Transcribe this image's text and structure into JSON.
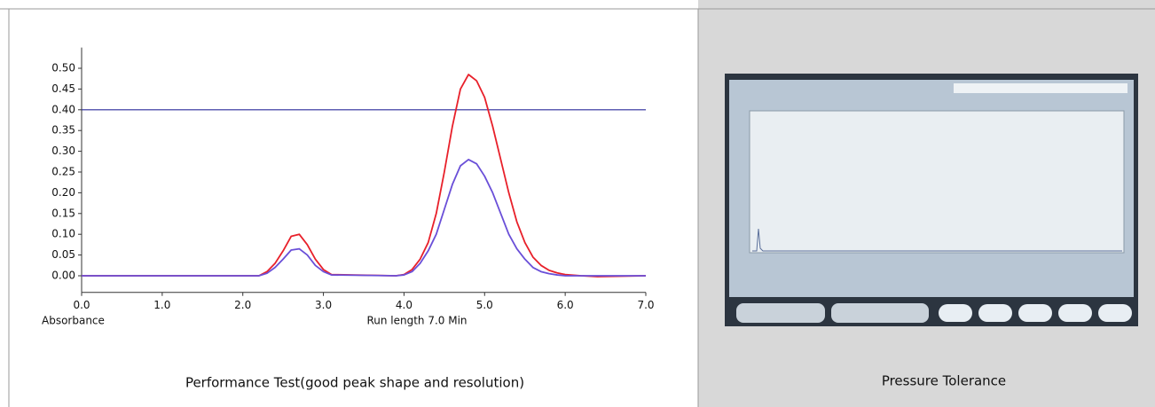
{
  "chart_data": {
    "type": "line",
    "title": "Performance Test(good peak shape and resolution)",
    "xlabel": "Run length 7.0 Min",
    "ylabel": "Absorbance",
    "x": [
      0,
      2.2,
      2.3,
      2.4,
      2.5,
      2.6,
      2.7,
      2.8,
      2.9,
      3.0,
      3.1,
      3.9,
      4.0,
      4.1,
      4.2,
      4.3,
      4.4,
      4.5,
      4.6,
      4.7,
      4.8,
      4.9,
      5.0,
      5.1,
      5.2,
      5.3,
      5.4,
      5.5,
      5.6,
      5.7,
      5.8,
      5.9,
      6.0,
      6.2,
      6.4,
      7.0
    ],
    "series": [
      {
        "color": "#e8202a",
        "values": [
          0,
          0,
          0.01,
          0.03,
          0.06,
          0.095,
          0.1,
          0.075,
          0.04,
          0.015,
          0.003,
          0,
          0.003,
          0.015,
          0.04,
          0.08,
          0.15,
          0.25,
          0.36,
          0.45,
          0.485,
          0.47,
          0.43,
          0.36,
          0.28,
          0.2,
          0.13,
          0.08,
          0.045,
          0.025,
          0.013,
          0.007,
          0.003,
          0,
          -0.002,
          0
        ]
      },
      {
        "color": "#6a4fd8",
        "values": [
          0,
          0,
          0.006,
          0.02,
          0.04,
          0.062,
          0.065,
          0.05,
          0.025,
          0.01,
          0.002,
          0,
          0.002,
          0.01,
          0.03,
          0.06,
          0.1,
          0.16,
          0.22,
          0.265,
          0.28,
          0.27,
          0.24,
          0.2,
          0.15,
          0.1,
          0.065,
          0.04,
          0.02,
          0.01,
          0.005,
          0.002,
          0,
          0,
          0,
          0
        ]
      }
    ],
    "reference_line": {
      "value": 0.4,
      "color": "#2a2a9a"
    },
    "xlim": [
      0,
      7
    ],
    "xticks": [
      {
        "value": 0,
        "label": "0.0"
      },
      {
        "value": 1,
        "label": "1.0"
      },
      {
        "value": 2,
        "label": "2.0"
      },
      {
        "value": 3,
        "label": "3.0"
      },
      {
        "value": 4,
        "label": "4.0"
      },
      {
        "value": 5,
        "label": "5.0"
      },
      {
        "value": 6,
        "label": "6.0"
      },
      {
        "value": 7,
        "label": "7.0"
      }
    ],
    "ylim": [
      -0.04,
      0.55
    ],
    "yticks": [
      {
        "value": 0,
        "label": "0.00"
      },
      {
        "value": 0.05,
        "label": "0.05"
      },
      {
        "value": 0.1,
        "label": "0.10"
      },
      {
        "value": 0.15,
        "label": "0.15"
      },
      {
        "value": 0.2,
        "label": "0.20"
      },
      {
        "value": 0.25,
        "label": "0.25"
      },
      {
        "value": 0.3,
        "label": "0.30"
      },
      {
        "value": 0.35,
        "label": "0.35"
      },
      {
        "value": 0.4,
        "label": "0.40"
      },
      {
        "value": 0.45,
        "label": "0.45"
      },
      {
        "value": 0.5,
        "label": "0.50"
      }
    ],
    "grid": false
  },
  "photo_caption": "Pressure Tolerance"
}
